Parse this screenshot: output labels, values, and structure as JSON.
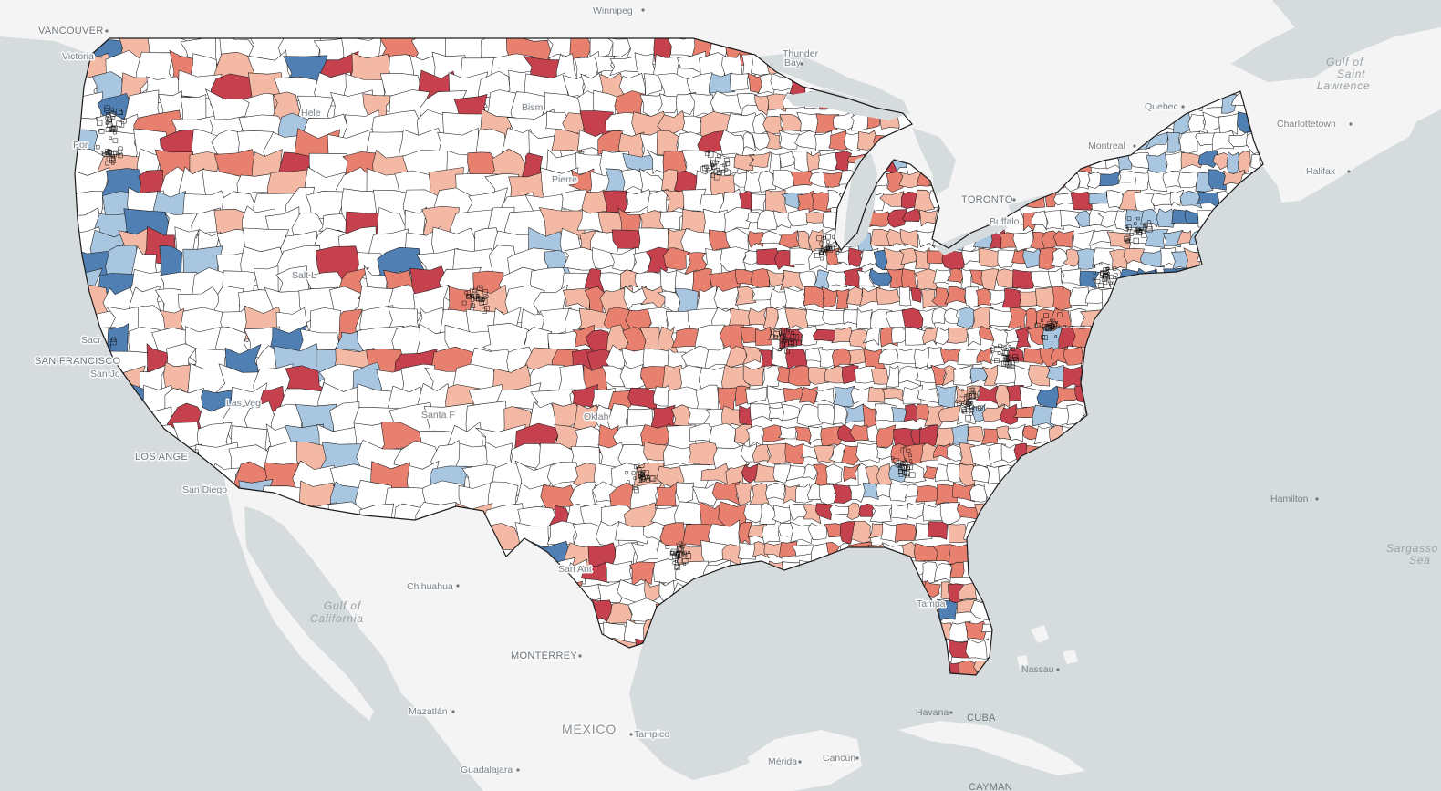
{
  "map": {
    "type": "choropleth",
    "basemap_colors": {
      "water": "#d6dcde",
      "land": "#f7f7f7",
      "land_other": "#f2f2f2",
      "county_border": "#1a1a1a"
    },
    "color_scale": {
      "blue_strong": "#4f7fb3",
      "blue_light": "#a9c6e1",
      "neutral": "#ffffff",
      "red_light": "#f4b9a5",
      "red_mid": "#e7806f",
      "red_strong": "#c6414e"
    }
  },
  "labels": {
    "vancouver": "VANCOUVER",
    "victoria": "Victoria",
    "winnipeg": "Winnipeg",
    "thunder_bay_1": "Thunder",
    "thunder_bay_2": "Bay",
    "quebec": "Quebec",
    "charlottetown": "Charlottetown",
    "montreal": "Montreal",
    "halifax": "Halifax",
    "toronto": "TORONTO",
    "buffalo": "Buffalo",
    "portland": "Por",
    "helena": "Hele",
    "bismarck": "Bism",
    "pierre": "Pierre",
    "salt_lake": "Salt L",
    "sacramento": "Sacr",
    "san_francisco": "SAN FRANCISCO",
    "san_jose": "San Jo",
    "las_vegas": "Las Veg",
    "los_angeles": "LOS ANGE",
    "san_diego": "San Diego",
    "santa_fe": "Santa F",
    "oklahoma": "Oklah",
    "san_antonio": "San Ant",
    "tampa": "Tampa",
    "hamilton": "Hamilton",
    "chihuahua": "Chihuahua",
    "monterrey": "MONTERREY",
    "mazatlan": "Mazatlán",
    "mexico": "MEXICO",
    "tampico": "Tampico",
    "guadalajara": "Guadalajara",
    "merida": "Mérida",
    "cancun": "Cancún",
    "havana": "Havana",
    "cuba": "CUBA",
    "nassau": "Nassau",
    "cayman": "CAYMAN"
  },
  "water_labels": {
    "gulf_st_lawrence_1": "Gulf of",
    "gulf_st_lawrence_2": "Saint",
    "gulf_st_lawrence_3": "Lawrence",
    "gulf_california_1": "Gulf of",
    "gulf_california_2": "California",
    "sargasso_1": "Sargasso",
    "sargasso_2": "Sea"
  }
}
